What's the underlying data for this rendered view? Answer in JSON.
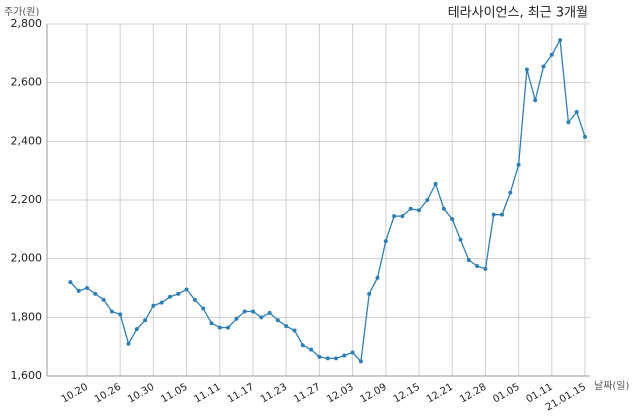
{
  "chart_data": {
    "type": "line",
    "title": "테라사이언스, 최근 3개월",
    "y_label": "주가(원)",
    "x_label": "날짜(일)",
    "categories": [
      null,
      null,
      "10.20",
      null,
      null,
      null,
      "10.26",
      null,
      null,
      null,
      "10.30",
      null,
      null,
      null,
      "11.05",
      null,
      null,
      null,
      "11.11",
      null,
      null,
      null,
      "11.17",
      null,
      null,
      null,
      "11.23",
      null,
      null,
      null,
      "11.27",
      null,
      null,
      null,
      "12.03",
      null,
      null,
      null,
      "12.09",
      null,
      null,
      null,
      "12.15",
      null,
      null,
      null,
      "12.21",
      null,
      null,
      null,
      "12.28",
      null,
      null,
      null,
      "01.05",
      null,
      null,
      null,
      "01.11",
      null,
      null,
      null,
      "21.01.15"
    ],
    "series": [
      {
        "color": "#2f7fb5",
        "values": [
          1920,
          1890,
          1900,
          1880,
          1860,
          1820,
          1810,
          1710,
          1760,
          1790,
          1840,
          1850,
          1870,
          1880,
          1895,
          1860,
          1830,
          1780,
          1765,
          1765,
          1795,
          1820,
          1820,
          1800,
          1815,
          1790,
          1770,
          1755,
          1705,
          1690,
          1665,
          1660,
          1660,
          1670,
          1680,
          1650,
          1880,
          1935,
          2060,
          2145,
          2145,
          2170,
          2165,
          2200,
          2255,
          2170,
          2135,
          2065,
          1995,
          1975,
          1965,
          2150,
          2150,
          2225,
          2320,
          2645,
          2540,
          2655,
          2695,
          2745,
          2465,
          2500,
          2415
        ]
      }
    ],
    "ylim": [
      1600,
      2800
    ],
    "yticks": [
      {
        "value": 1600,
        "label": "1,600"
      },
      {
        "value": 1800,
        "label": "1,800"
      },
      {
        "value": 2000,
        "label": "2,000"
      },
      {
        "value": 2200,
        "label": "2,200"
      },
      {
        "value": 2400,
        "label": "2,400"
      },
      {
        "value": 2600,
        "label": "2,600"
      },
      {
        "value": 2800,
        "label": "2,800"
      }
    ],
    "grid": true
  }
}
